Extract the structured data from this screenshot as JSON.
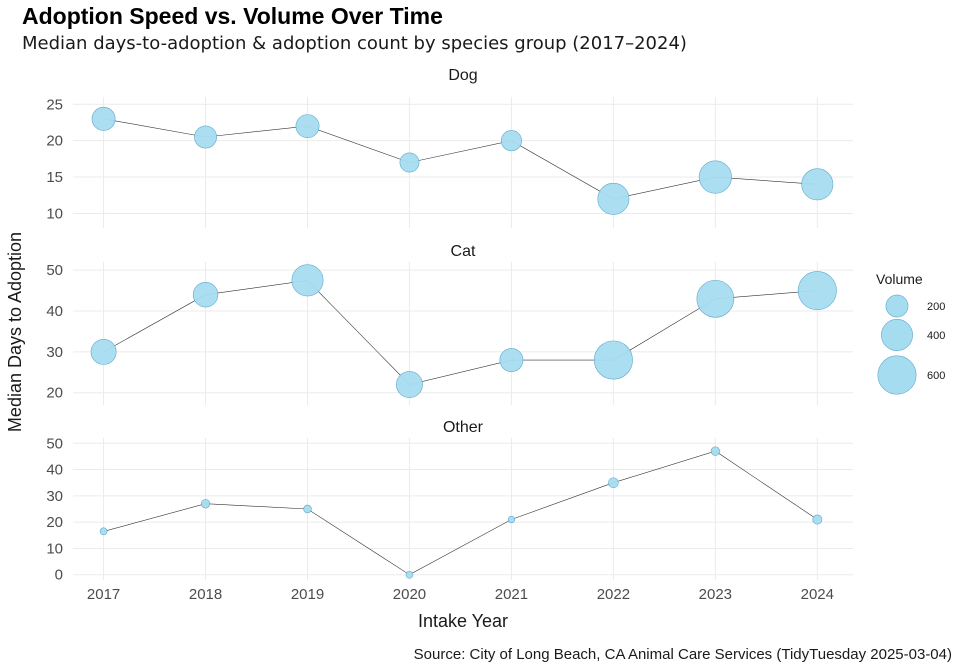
{
  "title": "Adoption Speed vs. Volume Over Time",
  "subtitle": "Median days-to-adoption & adoption count by species group (2017–2024)",
  "caption": "Source: City of Long Beach, CA Animal Care Services (TidyTuesday 2025-03-04)",
  "colors": {
    "point_fill": "#a6dcf0",
    "point_stroke": "#5fa8cc",
    "line": "#333333",
    "grid": "#ebebeb"
  },
  "chart_data": {
    "type": "scatter",
    "facet_layout": "vertical",
    "x": [
      2017,
      2018,
      2019,
      2020,
      2021,
      2022,
      2023,
      2024
    ],
    "xlabel": "Intake Year",
    "ylabel": "Median Days to Adoption",
    "size_legend": {
      "title": "Volume",
      "breaks": [
        200,
        400,
        600
      ]
    },
    "grid": true,
    "legend_position": "right",
    "panels": [
      {
        "strip": "Dog",
        "ylim": [
          8,
          26
        ],
        "yticks": [
          10,
          15,
          20,
          25
        ],
        "values": [
          23,
          20.5,
          22,
          17,
          20,
          12,
          15,
          14
        ],
        "volume": [
          220,
          200,
          220,
          150,
          170,
          400,
          430,
          400
        ]
      },
      {
        "strip": "Cat",
        "ylim": [
          17,
          52
        ],
        "yticks": [
          20,
          30,
          40,
          50
        ],
        "values": [
          30,
          44,
          47.5,
          22,
          28,
          28,
          43,
          45
        ],
        "volume": [
          260,
          250,
          400,
          280,
          220,
          600,
          560,
          600
        ]
      },
      {
        "strip": "Other",
        "ylim": [
          -2,
          52
        ],
        "yticks": [
          0,
          10,
          20,
          30,
          40,
          50
        ],
        "values": [
          16.5,
          27,
          25,
          0,
          21,
          35,
          47,
          21
        ],
        "volume": [
          20,
          30,
          25,
          20,
          18,
          40,
          30,
          35
        ]
      }
    ]
  }
}
